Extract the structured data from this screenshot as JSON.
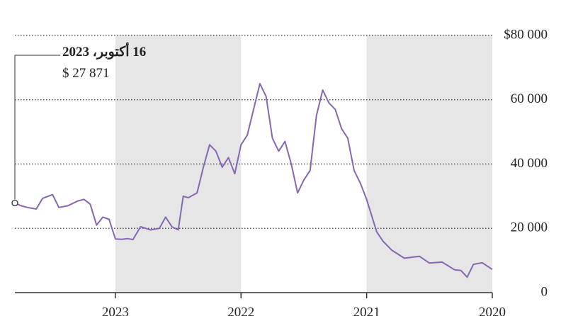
{
  "chart_data": {
    "type": "line",
    "x": [
      2020.0,
      2020.08,
      2020.15,
      2020.2,
      2020.25,
      2020.3,
      2020.4,
      2020.5,
      2020.58,
      2020.7,
      2020.8,
      2020.87,
      2020.92,
      2021.0,
      2021.05,
      2021.1,
      2021.15,
      2021.2,
      2021.25,
      2021.3,
      2021.35,
      2021.4,
      2021.45,
      2021.5,
      2021.55,
      2021.6,
      2021.65,
      2021.7,
      2021.75,
      2021.8,
      2021.85,
      2021.9,
      2021.95,
      2022.0,
      2022.05,
      2022.1,
      2022.15,
      2022.2,
      2022.25,
      2022.3,
      2022.35,
      2022.42,
      2022.46,
      2022.5,
      2022.55,
      2022.6,
      2022.65,
      2022.72,
      2022.8,
      2022.86,
      2022.9,
      2022.95,
      2023.0,
      2023.05,
      2023.1,
      2023.15,
      2023.2,
      2023.25,
      2023.3,
      2023.38,
      2023.45,
      2023.5,
      2023.58,
      2023.63,
      2023.7,
      2023.75,
      2023.8
    ],
    "series": [
      {
        "color": "#8667b4",
        "values": [
          7200,
          9300,
          8800,
          4800,
          6900,
          7100,
          9500,
          9200,
          11300,
          10700,
          13200,
          16000,
          18900,
          29000,
          34000,
          38000,
          48000,
          51000,
          57000,
          59000,
          63000,
          55000,
          38000,
          35000,
          31000,
          40000,
          47000,
          44000,
          48000,
          61000,
          65000,
          57000,
          49000,
          46000,
          37000,
          42000,
          39000,
          44000,
          46000,
          39000,
          31000,
          29500,
          30000,
          19500,
          20500,
          23500,
          20000,
          19500,
          20500,
          16500,
          16800,
          16600,
          16700,
          22800,
          23500,
          21000,
          27500,
          29000,
          28500,
          27000,
          26500,
          30500,
          29300,
          26000,
          26500,
          27000,
          27871
        ]
      }
    ],
    "annotation": {
      "label": "16 أكتوبر، 2023",
      "value_label": "$ 27 871"
    },
    "xlim": [
      2020,
      2023.8
    ],
    "xticks": [
      2020,
      2021,
      2022,
      2023
    ],
    "x_reversed": true,
    "shaded": [
      [
        2020,
        2021
      ],
      [
        2022,
        2023
      ]
    ],
    "ylim": [
      0,
      80000
    ],
    "yticks": [
      0,
      {
        "value": 20000,
        "label": "20 000"
      },
      {
        "value": 40000,
        "label": "40 000"
      },
      {
        "value": 60000,
        "label": "60 000"
      },
      {
        "value": 80000,
        "label": "$80 000"
      }
    ],
    "grid": true
  }
}
